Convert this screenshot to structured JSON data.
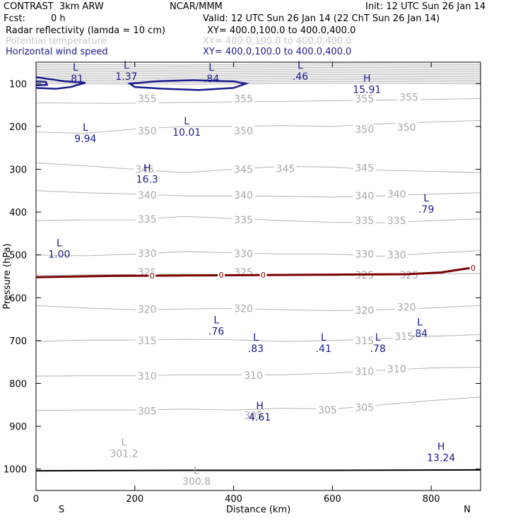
{
  "header": {
    "title": "CONTRAST  3km ARW",
    "org": "NCAR/MMM",
    "init": "Init: 12 UTC Sun 26 Jan 14",
    "fcst_label": "Fcst:",
    "fcst_value": "0 h",
    "valid": "Valid: 12 UTC Sun 26 Jan 14 (22 ChT Sun 26 Jan 14)"
  },
  "legend": [
    {
      "name": "Radar reflectivity (lamda = 10 cm)",
      "xy": "XY= 400.0,100.0 to 400.0,400.0",
      "color": "#000000"
    },
    {
      "name": "Potential temperature",
      "xy": "XY= 400.0,100.0 to 400.0,400.0",
      "color": "#c8c8c8"
    },
    {
      "name": "Horizontal wind speed",
      "xy": "XY= 400.0,100.0 to 400.0,400.0",
      "color": "#1a1a8c"
    }
  ],
  "colors": {
    "theta": "#b4b4b4",
    "wind": "#1a1a8c",
    "freezing": "#7a0000",
    "ground": "#000000"
  },
  "chart_data": {
    "type": "line",
    "xlabel": "Distance (km)",
    "ylabel": "Pressure (hPa)",
    "xlim": [
      0,
      900
    ],
    "ylim": [
      1050,
      50
    ],
    "xticks": [
      0,
      200,
      400,
      600,
      800
    ],
    "yticks": [
      100,
      200,
      300,
      400,
      500,
      600,
      700,
      800,
      900,
      1000
    ],
    "endpoint_left": "S",
    "endpoint_right": "N",
    "theta_contours": [
      {
        "label": "355",
        "points": [
          [
            0,
            145
          ],
          [
            150,
            146
          ],
          [
            300,
            144
          ],
          [
            450,
            142
          ],
          [
            600,
            140
          ],
          [
            750,
            138
          ],
          [
            900,
            135
          ]
        ]
      },
      {
        "label": "350",
        "points": [
          [
            0,
            213
          ],
          [
            100,
            216
          ],
          [
            200,
            206
          ],
          [
            300,
            200
          ],
          [
            400,
            200
          ],
          [
            500,
            198
          ],
          [
            600,
            200
          ],
          [
            700,
            194
          ],
          [
            800,
            190
          ],
          [
            900,
            186
          ]
        ]
      },
      {
        "label": "345",
        "points": [
          [
            0,
            285
          ],
          [
            100,
            292
          ],
          [
            200,
            300
          ],
          [
            300,
            308
          ],
          [
            400,
            300
          ],
          [
            500,
            293
          ],
          [
            600,
            295
          ],
          [
            700,
            302
          ],
          [
            800,
            305
          ],
          [
            900,
            308
          ]
        ]
      },
      {
        "label": "340",
        "points": [
          [
            0,
            350
          ],
          [
            100,
            355
          ],
          [
            200,
            358
          ],
          [
            300,
            362
          ],
          [
            400,
            362
          ],
          [
            500,
            363
          ],
          [
            600,
            365
          ],
          [
            700,
            362
          ],
          [
            800,
            358
          ],
          [
            900,
            355
          ]
        ]
      },
      {
        "label": "335",
        "points": [
          [
            0,
            420
          ],
          [
            100,
            418
          ],
          [
            200,
            418
          ],
          [
            300,
            410
          ],
          [
            400,
            415
          ],
          [
            500,
            420
          ],
          [
            600,
            424
          ],
          [
            700,
            425
          ],
          [
            800,
            420
          ],
          [
            900,
            416
          ]
        ]
      },
      {
        "label": "330",
        "points": [
          [
            0,
            500
          ],
          [
            100,
            502
          ],
          [
            200,
            498
          ],
          [
            300,
            492
          ],
          [
            400,
            495
          ],
          [
            500,
            498
          ],
          [
            600,
            498
          ],
          [
            700,
            503
          ],
          [
            800,
            496
          ],
          [
            900,
            490
          ]
        ]
      },
      {
        "label": "325",
        "points": [
          [
            0,
            548
          ],
          [
            150,
            546
          ],
          [
            300,
            545
          ],
          [
            450,
            547
          ],
          [
            600,
            548
          ],
          [
            750,
            545
          ],
          [
            900,
            543
          ]
        ]
      },
      {
        "label": "320",
        "points": [
          [
            0,
            618
          ],
          [
            100,
            624
          ],
          [
            200,
            628
          ],
          [
            300,
            626
          ],
          [
            400,
            625
          ],
          [
            500,
            628
          ],
          [
            600,
            630
          ],
          [
            700,
            628
          ],
          [
            800,
            624
          ],
          [
            900,
            618
          ]
        ]
      },
      {
        "label": "315",
        "points": [
          [
            0,
            702
          ],
          [
            100,
            699
          ],
          [
            200,
            699
          ],
          [
            300,
            697
          ],
          [
            400,
            698
          ],
          [
            500,
            702
          ],
          [
            600,
            700
          ],
          [
            700,
            695
          ],
          [
            800,
            690
          ],
          [
            900,
            686
          ]
        ]
      },
      {
        "label": "310",
        "points": [
          [
            0,
            783
          ],
          [
            100,
            782
          ],
          [
            200,
            782
          ],
          [
            300,
            780
          ],
          [
            400,
            780
          ],
          [
            500,
            780
          ],
          [
            600,
            776
          ],
          [
            700,
            769
          ],
          [
            800,
            764
          ],
          [
            900,
            762
          ]
        ]
      },
      {
        "label": "305",
        "points": [
          [
            0,
            863
          ],
          [
            100,
            862
          ],
          [
            200,
            862
          ],
          [
            300,
            860
          ],
          [
            400,
            862
          ],
          [
            500,
            858
          ],
          [
            600,
            860
          ],
          [
            700,
            850
          ],
          [
            800,
            840
          ],
          [
            900,
            832
          ]
        ]
      }
    ],
    "theta_labels": [
      {
        "text": "355",
        "x": 225,
        "p": 135
      },
      {
        "text": "355",
        "x": 420,
        "p": 135
      },
      {
        "text": "355",
        "x": 665,
        "p": 135
      },
      {
        "text": "355",
        "x": 755,
        "p": 132
      },
      {
        "text": "350",
        "x": 225,
        "p": 210
      },
      {
        "text": "350",
        "x": 420,
        "p": 210
      },
      {
        "text": "350",
        "x": 665,
        "p": 207
      },
      {
        "text": "350",
        "x": 750,
        "p": 202
      },
      {
        "text": "345",
        "x": 220,
        "p": 300
      },
      {
        "text": "345",
        "x": 420,
        "p": 300
      },
      {
        "text": "345",
        "x": 505,
        "p": 298
      },
      {
        "text": "345",
        "x": 665,
        "p": 297
      },
      {
        "text": "340",
        "x": 225,
        "p": 360
      },
      {
        "text": "340",
        "x": 420,
        "p": 360
      },
      {
        "text": "340",
        "x": 665,
        "p": 362
      },
      {
        "text": "340",
        "x": 730,
        "p": 358
      },
      {
        "text": "335",
        "x": 225,
        "p": 416
      },
      {
        "text": "335",
        "x": 420,
        "p": 418
      },
      {
        "text": "335",
        "x": 665,
        "p": 420
      },
      {
        "text": "335",
        "x": 730,
        "p": 420
      },
      {
        "text": "330",
        "x": 225,
        "p": 496
      },
      {
        "text": "330",
        "x": 420,
        "p": 497
      },
      {
        "text": "330",
        "x": 665,
        "p": 498
      },
      {
        "text": "330",
        "x": 730,
        "p": 500
      },
      {
        "text": "325",
        "x": 225,
        "p": 540
      },
      {
        "text": "325",
        "x": 420,
        "p": 540
      },
      {
        "text": "325",
        "x": 665,
        "p": 547
      },
      {
        "text": "325",
        "x": 755,
        "p": 547
      },
      {
        "text": "320",
        "x": 225,
        "p": 627
      },
      {
        "text": "320",
        "x": 420,
        "p": 625
      },
      {
        "text": "320",
        "x": 665,
        "p": 629
      },
      {
        "text": "320",
        "x": 750,
        "p": 622
      },
      {
        "text": "315",
        "x": 225,
        "p": 700
      },
      {
        "text": "315",
        "x": 665,
        "p": 700
      },
      {
        "text": "315",
        "x": 745,
        "p": 690
      },
      {
        "text": "310",
        "x": 225,
        "p": 783
      },
      {
        "text": "310",
        "x": 440,
        "p": 781
      },
      {
        "text": "310",
        "x": 665,
        "p": 772
      },
      {
        "text": "310",
        "x": 730,
        "p": 766
      },
      {
        "text": "305",
        "x": 225,
        "p": 864
      },
      {
        "text": "305",
        "x": 440,
        "p": 874
      },
      {
        "text": "305",
        "x": 590,
        "p": 862
      },
      {
        "text": "305",
        "x": 665,
        "p": 856
      }
    ],
    "theta_extrema": [
      {
        "letter": "L",
        "value": "301.2",
        "x": 178,
        "p": 945
      },
      {
        "letter": "L",
        "value": "300.8",
        "x": 325,
        "p": 1010
      }
    ],
    "wind_extrema": [
      {
        "letter": "L",
        "value": ".81",
        "x": 80,
        "p": 70
      },
      {
        "letter": "L",
        "value": "1.37",
        "x": 183,
        "p": 65
      },
      {
        "letter": "L",
        "value": ".84",
        "x": 355,
        "p": 70
      },
      {
        "letter": "L",
        "value": ".46",
        "x": 535,
        "p": 65
      },
      {
        "letter": "H",
        "value": "15.91",
        "x": 670,
        "p": 95
      },
      {
        "letter": "L",
        "value": "9.94",
        "x": 100,
        "p": 210
      },
      {
        "letter": "L",
        "value": "10.01",
        "x": 305,
        "p": 195
      },
      {
        "letter": "H",
        "value": "16.3",
        "x": 225,
        "p": 305
      },
      {
        "letter": "L",
        "value": ".79",
        "x": 790,
        "p": 375
      },
      {
        "letter": "L",
        "value": "1.00",
        "x": 47,
        "p": 480
      },
      {
        "letter": "L",
        "value": ".76",
        "x": 365,
        "p": 660
      },
      {
        "letter": "L",
        "value": ".83",
        "x": 445,
        "p": 700
      },
      {
        "letter": "L",
        "value": ".41",
        "x": 582,
        "p": 700
      },
      {
        "letter": "L",
        "value": ".78",
        "x": 692,
        "p": 700
      },
      {
        "letter": "L",
        "value": ".84",
        "x": 777,
        "p": 665
      },
      {
        "letter": "H",
        "value": "4.61",
        "x": 453,
        "p": 860
      },
      {
        "letter": "H",
        "value": "13.24",
        "x": 820,
        "p": 955
      }
    ],
    "wind_contours": [
      {
        "points": [
          [
            0,
            85
          ],
          [
            30,
            90
          ],
          [
            60,
            95
          ],
          [
            100,
            98
          ],
          [
            70,
            108
          ],
          [
            40,
            112
          ],
          [
            0,
            110
          ]
        ],
        "closed": false
      },
      {
        "points": [
          [
            0,
            95
          ],
          [
            20,
            96
          ],
          [
            22,
            103
          ],
          [
            0,
            104
          ]
        ],
        "closed": false
      },
      {
        "points": [
          [
            190,
            100
          ],
          [
            250,
            94
          ],
          [
            320,
            92
          ],
          [
            400,
            95
          ],
          [
            425,
            100
          ],
          [
            400,
            110
          ],
          [
            330,
            115
          ],
          [
            260,
            112
          ],
          [
            200,
            108
          ]
        ],
        "closed": true
      }
    ],
    "freezing_level": {
      "label": "0",
      "points": [
        [
          0,
          552
        ],
        [
          150,
          549
        ],
        [
          300,
          548
        ],
        [
          450,
          547
        ],
        [
          600,
          546
        ],
        [
          750,
          545
        ],
        [
          820,
          541
        ],
        [
          870,
          532
        ],
        [
          885,
          530
        ]
      ],
      "label_positions": [
        [
          235,
          548
        ],
        [
          375,
          547
        ],
        [
          460,
          547
        ],
        [
          885,
          530
        ]
      ]
    },
    "ground": {
      "points": [
        [
          0,
          1004
        ],
        [
          300,
          1003
        ],
        [
          600,
          1003
        ],
        [
          900,
          1002
        ]
      ]
    },
    "theta_top_band": {
      "pmin": 55,
      "pmax": 100,
      "count": 12
    }
  }
}
